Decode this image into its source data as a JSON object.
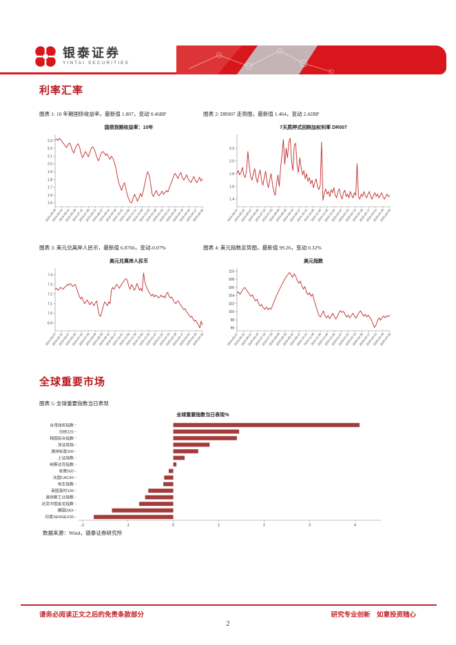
{
  "header": {
    "brand_cn": "银泰证券",
    "brand_en": "YINTAI SECURITIES",
    "brand_red": "#d8161c"
  },
  "sections": {
    "rates_title": "利率汇率",
    "global_title": "全球重要市场"
  },
  "captions": {
    "fig1": "图表 1: 10 年期国债收益率，最新值 1.807，变动 0.46BP",
    "fig2": "图表 2: DR007 走势图，最新值 1.464，变动 2.42BP",
    "fig3": "图表 3: 美元兑离岸人民币，最新值 6.8766，变动-0.07%",
    "fig4": "图表 4: 美元指数走势图，最新值 99.26，变动 0.32%",
    "fig5": "图表 5: 全球重要指数当日表现"
  },
  "source_note": "数据来源：Wind，银泰证券研究所",
  "footer": {
    "left": "请务必阅读正文之后的免责条款部分",
    "right": "研究专业创新　如意投资随心",
    "page_number": "2"
  },
  "chart_data": [
    {
      "id": "treasury-10y",
      "type": "line",
      "title": "国债到期收益率：10年",
      "color": "#bf2727",
      "ylim": [
        1.45,
        2.38
      ],
      "yticks": [
        "1.5",
        "1.6",
        "1.7",
        "1.8",
        "1.9",
        "2.0",
        "2.1",
        "2.2",
        "2.3"
      ],
      "x_labels": [
        "2024-05-09",
        "2024-05-24",
        "2024-06-11",
        "2024-06-26",
        "2024-07-11",
        "2024-07-26",
        "2024-08-12",
        "2024-08-27",
        "2024-09-11",
        "2024-09-30",
        "2024-10-22",
        "2024-11-06",
        "2024-11-21",
        "2024-12-06",
        "2024-12-23",
        "2025-01-08",
        "2025-01-23",
        "2025-02-14",
        "2025-03-03",
        "2025-03-18",
        "2025-04-02",
        "2025-04-17",
        "2025-04-30"
      ],
      "values": [
        2.31,
        2.32,
        2.3,
        2.33,
        2.31,
        2.28,
        2.26,
        2.23,
        2.21,
        2.25,
        2.27,
        2.23,
        2.17,
        2.14,
        2.2,
        2.24,
        2.26,
        2.21,
        2.13,
        2.08,
        2.12,
        2.16,
        2.13,
        2.09,
        2.15,
        2.2,
        2.22,
        2.19,
        2.14,
        2.08,
        2.04,
        2.09,
        2.14,
        2.16,
        2.14,
        2.11,
        2.13,
        2.09,
        2.06,
        2.1,
        2.07,
        2.02,
        1.95,
        1.85,
        1.76,
        1.71,
        1.66,
        1.72,
        1.76,
        1.68,
        1.6,
        1.55,
        1.51,
        1.5,
        1.56,
        1.61,
        1.57,
        1.52,
        1.56,
        1.62,
        1.58,
        1.65,
        1.74,
        1.83,
        1.9,
        1.86,
        1.76,
        1.62,
        1.58,
        1.62,
        1.66,
        1.61,
        1.59,
        1.62,
        1.65,
        1.61,
        1.63,
        1.66,
        1.64,
        1.69,
        1.74,
        1.79,
        1.84,
        1.88,
        1.85,
        1.81,
        1.86,
        1.89,
        1.83,
        1.79,
        1.82,
        1.86,
        1.81,
        1.78,
        1.76,
        1.8,
        1.84,
        1.79,
        1.76,
        1.79,
        1.83,
        1.78,
        1.81
      ]
    },
    {
      "id": "dr007",
      "type": "line",
      "title": "7天质押式回购加权利率 DR007",
      "color": "#bf2727",
      "ylim": [
        1.28,
        2.42
      ],
      "yticks": [
        "1.4",
        "1.6",
        "1.8",
        "2.0",
        "2.2"
      ],
      "x_labels": [
        "2024-05-07",
        "2024-05-22",
        "2024-06-07",
        "2024-06-25",
        "2024-07-10",
        "2024-07-25",
        "2024-08-09",
        "2024-08-26",
        "2024-09-10",
        "2024-09-27",
        "2024-10-21",
        "2024-11-05",
        "2024-11-20",
        "2024-12-05",
        "2024-12-20",
        "2025-01-07",
        "2025-01-22",
        "2025-02-13",
        "2025-02-28",
        "2025-03-17",
        "2025-04-01",
        "2025-04-16",
        "2025-04-30"
      ],
      "values": [
        1.8,
        1.85,
        1.78,
        1.82,
        1.9,
        1.78,
        1.74,
        1.85,
        2.15,
        1.92,
        1.76,
        1.7,
        1.8,
        1.88,
        1.74,
        1.66,
        1.78,
        1.86,
        1.7,
        1.62,
        1.74,
        1.84,
        1.68,
        1.58,
        1.7,
        1.8,
        1.64,
        1.52,
        1.46,
        1.64,
        1.78,
        1.6,
        1.9,
        2.1,
        2.34,
        1.95,
        2.2,
        2.05,
        2.3,
        2.36,
        2.0,
        1.85,
        2.25,
        2.28,
        1.95,
        1.82,
        2.05,
        1.9,
        1.78,
        1.85,
        1.72,
        1.8,
        1.68,
        1.74,
        1.64,
        1.7,
        1.58,
        1.66,
        1.72,
        1.6,
        1.55,
        1.62,
        2.3,
        1.38,
        1.5,
        1.56,
        1.48,
        1.52,
        1.44,
        1.55,
        1.5,
        1.58,
        1.46,
        1.42,
        1.52,
        1.56,
        1.46,
        1.4,
        1.5,
        1.54,
        1.44,
        1.48,
        1.42,
        1.52,
        1.46,
        1.42,
        1.5,
        1.46,
        1.96,
        1.44,
        1.4,
        1.48,
        1.44,
        1.52,
        1.46,
        1.42,
        1.48,
        1.52,
        1.44,
        1.4,
        1.46,
        1.5,
        1.44,
        1.48,
        1.42,
        1.46,
        1.5,
        1.44,
        1.4,
        1.44,
        1.48,
        1.44,
        1.46
      ]
    },
    {
      "id": "usd-cnh",
      "type": "line",
      "title": "美元兑离岸人民币",
      "color": "#bf2727",
      "ylim": [
        6.82,
        7.47
      ],
      "yticks": [
        "6.9",
        "7.0",
        "7.1",
        "7.2",
        "7.3",
        "7.4"
      ],
      "x_labels": [
        "2024-05-07",
        "2024-05-22",
        "2024-06-07",
        "2024-06-25",
        "2024-07-10",
        "2024-07-25",
        "2024-08-09",
        "2024-08-26",
        "2024-09-10",
        "2024-09-27",
        "2024-10-21",
        "2024-11-05",
        "2024-11-20",
        "2024-12-05",
        "2024-12-20",
        "2025-01-07",
        "2025-01-22",
        "2025-02-13",
        "2025-02-28",
        "2025-03-17",
        "2025-04-01",
        "2025-04-16",
        "2025-04-30"
      ],
      "values": [
        7.25,
        7.26,
        7.24,
        7.25,
        7.27,
        7.26,
        7.25,
        7.27,
        7.28,
        7.3,
        7.29,
        7.31,
        7.3,
        7.28,
        7.29,
        7.3,
        7.26,
        7.22,
        7.18,
        7.15,
        7.17,
        7.13,
        7.1,
        7.12,
        7.14,
        7.11,
        7.09,
        7.12,
        7.1,
        7.08,
        7.11,
        7.13,
        7.05,
        6.98,
        6.97,
        7.02,
        7.08,
        7.12,
        7.1,
        7.08,
        7.12,
        7.1,
        7.24,
        7.27,
        7.25,
        7.28,
        7.3,
        7.28,
        7.26,
        7.29,
        7.31,
        7.33,
        7.35,
        7.36,
        7.34,
        7.28,
        7.25,
        7.3,
        7.28,
        7.24,
        7.26,
        7.31,
        7.28,
        7.24,
        7.26,
        7.23,
        7.42,
        7.32,
        7.28,
        7.25,
        7.22,
        7.2,
        7.18,
        7.2,
        7.17,
        7.19,
        7.18,
        7.16,
        7.17,
        7.19,
        7.17,
        7.18,
        7.16,
        7.2,
        7.22,
        7.18,
        7.16,
        7.17,
        7.14,
        7.12,
        7.1,
        7.12,
        7.13,
        7.1,
        7.08,
        7.06,
        7.04,
        7.05,
        7.02,
        7.0,
        6.98,
        6.96,
        6.97,
        6.94,
        6.92,
        6.93,
        6.9,
        6.88,
        6.85,
        6.92,
        6.88
      ]
    },
    {
      "id": "usd-index",
      "type": "line",
      "title": "美元指数",
      "color": "#bf2727",
      "ylim": [
        95.3,
        110.8
      ],
      "yticks": [
        "96",
        "98",
        "100",
        "102",
        "104",
        "106",
        "108",
        "110"
      ],
      "x_labels": [
        "2024-05-07",
        "2024-05-22",
        "2024-06-07",
        "2024-06-25",
        "2024-07-10",
        "2024-07-25",
        "2024-08-09",
        "2024-08-26",
        "2024-09-10",
        "2024-09-27",
        "2024-10-21",
        "2024-11-05",
        "2024-11-20",
        "2024-12-05",
        "2024-12-20",
        "2025-01-07",
        "2025-01-22",
        "2025-02-13",
        "2025-02-28",
        "2025-03-17",
        "2025-04-01",
        "2025-04-16",
        "2025-04-30"
      ],
      "values": [
        104.6,
        104.9,
        104.3,
        105.0,
        105.6,
        106.0,
        105.5,
        104.9,
        104.4,
        103.8,
        104.2,
        103.3,
        102.7,
        103.1,
        102.1,
        101.4,
        101.8,
        101.0,
        100.6,
        101.2,
        100.5,
        100.9,
        100.6,
        101.5,
        102.5,
        103.4,
        104.3,
        105.1,
        105.9,
        106.6,
        107.4,
        108.1,
        108.7,
        109.2,
        109.7,
        109.1,
        108.5,
        109.4,
        108.8,
        107.8,
        107.0,
        107.6,
        106.4,
        105.6,
        106.2,
        104.8,
        104.2,
        104.7,
        103.8,
        104.4,
        102.8,
        101.5,
        100.3,
        99.2,
        98.7,
        99.5,
        100.2,
        99.0,
        98.5,
        99.1,
        98.3,
        98.9,
        99.6,
        98.8,
        98.2,
        98.8,
        99.7,
        100.3,
        99.8,
        100.1,
        99.3,
        98.7,
        99.2,
        98.5,
        99.0,
        99.6,
        99.0,
        98.4,
        99.1,
        99.8,
        100.2,
        99.6,
        98.9,
        99.4,
        98.7,
        99.2,
        98.6,
        98.0,
        97.0,
        96.1,
        96.7,
        97.8,
        98.5,
        97.9,
        98.6,
        99.0,
        98.5,
        99.0,
        98.8,
        99.26
      ]
    },
    {
      "id": "global-indices",
      "type": "bar",
      "title": "全球重要指数当日表现%",
      "color": "#a23b39",
      "xlim": [
        -2.1,
        4.57
      ],
      "xticks": [
        -2,
        -1,
        0,
        1,
        2,
        3,
        4
      ],
      "categories": [
        "台湾加权指数",
        "日经225",
        "韩国综合指数",
        "深证成指",
        "澳洲标普200",
        "上证指数",
        "纳斯达克指数",
        "标普500",
        "法国CAC40",
        "恒生指数",
        "英国富时100",
        "道琼斯工业指数",
        "纳斯达克中国金龙指数",
        "德国DAX",
        "印度SENSEX30"
      ],
      "values": [
        4.1,
        1.45,
        1.4,
        0.8,
        0.55,
        0.25,
        0.07,
        -0.1,
        -0.2,
        -0.22,
        -0.55,
        -0.62,
        -0.75,
        -1.35,
        -1.75
      ]
    }
  ]
}
